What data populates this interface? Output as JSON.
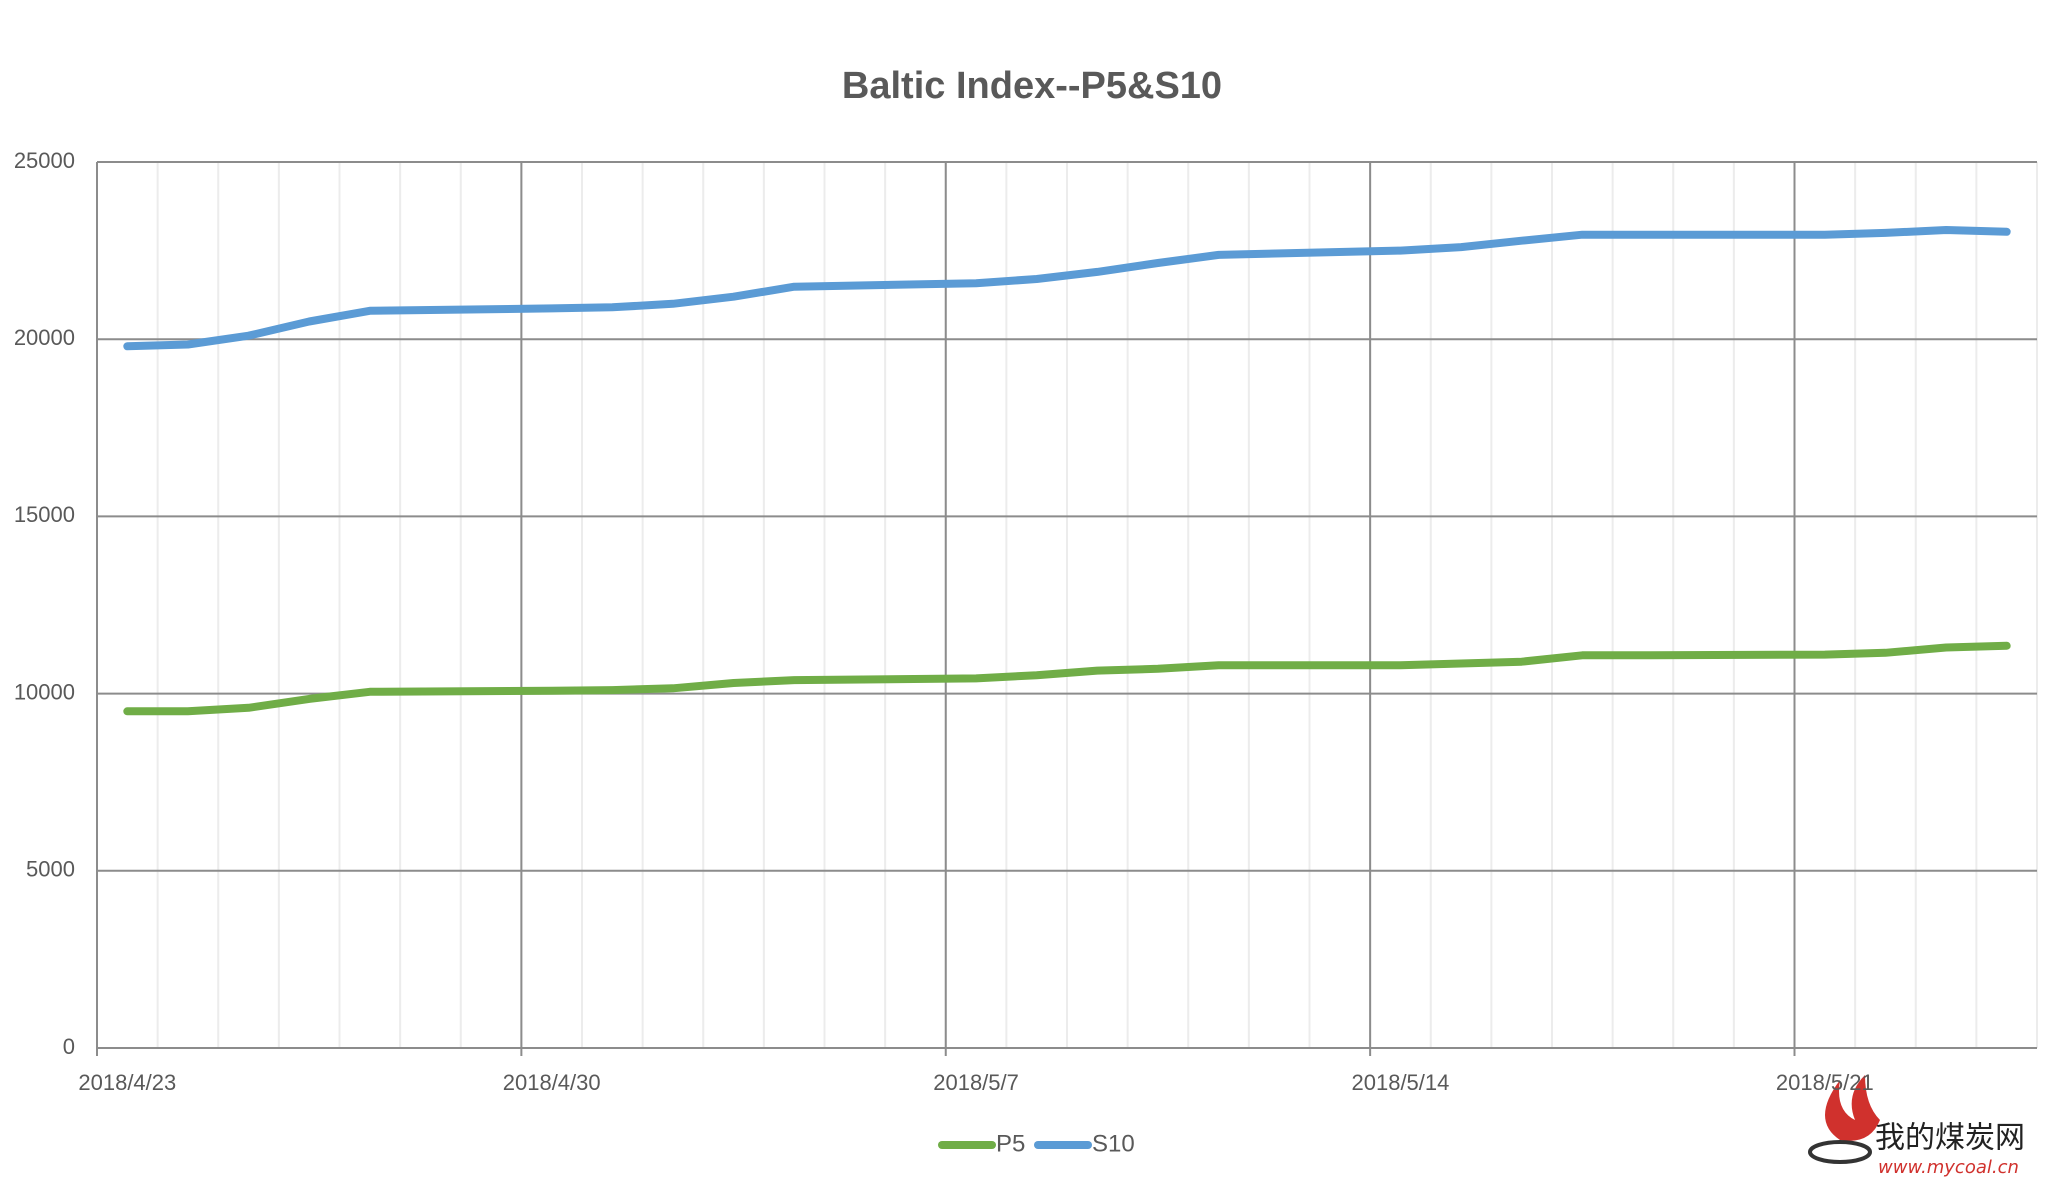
{
  "chart_data": {
    "type": "line",
    "title": "Baltic Index--P5&S10",
    "x": [
      "2018/4/23",
      "2018/4/24",
      "2018/4/25",
      "2018/4/26",
      "2018/4/27",
      "2018/4/30",
      "2018/5/1",
      "2018/5/2",
      "2018/5/3",
      "2018/5/4",
      "2018/5/7",
      "2018/5/8",
      "2018/5/9",
      "2018/5/10",
      "2018/5/11",
      "2018/5/14",
      "2018/5/15",
      "2018/5/16",
      "2018/5/17",
      "2018/5/18",
      "2018/5/21",
      "2018/5/22",
      "2018/5/23",
      "2018/5/24"
    ],
    "series": [
      {
        "name": "P5",
        "color": "#70ad47",
        "values": [
          9500,
          9500,
          9600,
          9850,
          10050,
          10080,
          10100,
          10150,
          10300,
          10380,
          10430,
          10520,
          10650,
          10700,
          10800,
          10800,
          10850,
          10900,
          11080,
          11080,
          11100,
          11150,
          11300,
          11350
        ]
      },
      {
        "name": "S10",
        "color": "#5b9bd5",
        "values": [
          19800,
          19850,
          20100,
          20500,
          20800,
          20870,
          20900,
          21000,
          21200,
          21480,
          21580,
          21700,
          21900,
          22150,
          22380,
          22500,
          22600,
          22780,
          22950,
          22950,
          22950,
          23000,
          23080,
          23030
        ]
      }
    ],
    "xlim": [
      "2018/4/23",
      "2018/5/25"
    ],
    "xticks": [
      "2018/4/23",
      "2018/4/30",
      "2018/5/7",
      "2018/5/14",
      "2018/5/21"
    ],
    "ylim": [
      0,
      25000
    ],
    "yticks": [
      0,
      5000,
      10000,
      15000,
      20000,
      25000
    ],
    "grid": true,
    "legend": "bottom",
    "watermark": {
      "name": "我的煤炭网",
      "url": "www.mycoal.cn"
    }
  }
}
